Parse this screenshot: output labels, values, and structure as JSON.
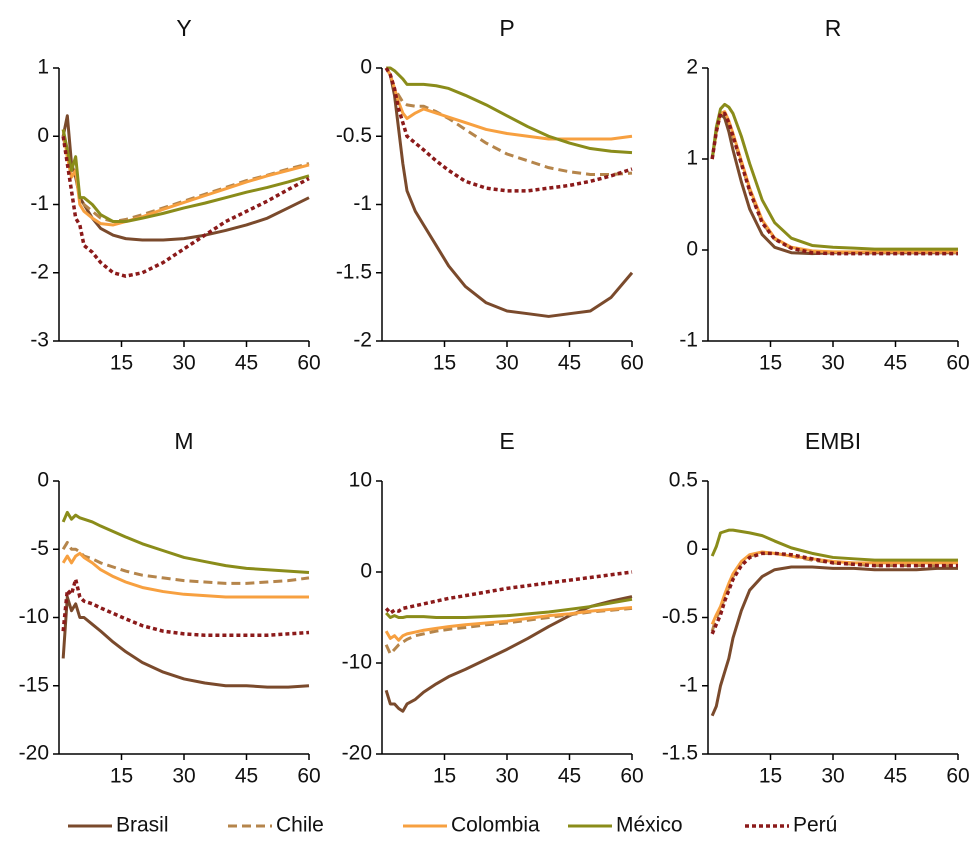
{
  "chart_data": [
    {
      "type": "line",
      "title": "Y",
      "xlim": [
        0,
        60
      ],
      "xticks": [
        15,
        30,
        45,
        60
      ],
      "ylim": [
        -3,
        1
      ],
      "yticks": [
        -3,
        -2,
        -1,
        0,
        1
      ],
      "x": [
        1,
        2,
        3,
        4,
        5,
        6,
        8,
        10,
        13,
        16,
        20,
        25,
        30,
        35,
        40,
        45,
        50,
        55,
        60
      ],
      "series": [
        {
          "name": "Brasil",
          "color": "#7a4a2c",
          "style": "solid",
          "values": [
            0,
            0.3,
            -0.4,
            -0.6,
            -0.9,
            -1.0,
            -1.2,
            -1.35,
            -1.45,
            -1.5,
            -1.52,
            -1.52,
            -1.5,
            -1.45,
            -1.38,
            -1.3,
            -1.2,
            -1.05,
            -0.9
          ]
        },
        {
          "name": "Chile",
          "color": "#b5854b",
          "style": "dashed",
          "values": [
            0,
            -0.3,
            -0.6,
            -0.5,
            -0.9,
            -1.0,
            -1.1,
            -1.2,
            -1.25,
            -1.22,
            -1.15,
            -1.05,
            -0.95,
            -0.85,
            -0.75,
            -0.65,
            -0.57,
            -0.48,
            -0.4
          ]
        },
        {
          "name": "Colombia",
          "color": "#f7a040",
          "style": "solid",
          "values": [
            0.1,
            -0.3,
            -0.6,
            -0.5,
            -1.0,
            -1.1,
            -1.2,
            -1.28,
            -1.3,
            -1.25,
            -1.18,
            -1.07,
            -0.97,
            -0.87,
            -0.77,
            -0.67,
            -0.58,
            -0.5,
            -0.42
          ]
        },
        {
          "name": "México",
          "color": "#8a8c1a",
          "style": "solid",
          "values": [
            0.1,
            -0.2,
            -0.5,
            -0.3,
            -0.9,
            -0.9,
            -1.0,
            -1.15,
            -1.25,
            -1.25,
            -1.2,
            -1.13,
            -1.05,
            -0.98,
            -0.9,
            -0.82,
            -0.75,
            -0.67,
            -0.58
          ]
        },
        {
          "name": "Perú",
          "color": "#8b1a1a",
          "style": "dotted",
          "values": [
            0,
            -0.4,
            -0.8,
            -1.2,
            -1.3,
            -1.6,
            -1.7,
            -1.85,
            -2.0,
            -2.05,
            -2.0,
            -1.85,
            -1.65,
            -1.45,
            -1.25,
            -1.1,
            -0.95,
            -0.78,
            -0.62
          ]
        }
      ]
    },
    {
      "type": "line",
      "title": "P",
      "xlim": [
        0,
        60
      ],
      "xticks": [
        15,
        30,
        45,
        60
      ],
      "ylim": [
        -2,
        0
      ],
      "yticks": [
        -2,
        -1.5,
        -1,
        -0.5,
        0
      ],
      "x": [
        1,
        2,
        3,
        4,
        5,
        6,
        8,
        10,
        13,
        16,
        20,
        25,
        30,
        35,
        40,
        45,
        50,
        55,
        60
      ],
      "series": [
        {
          "name": "Brasil",
          "color": "#7a4a2c",
          "style": "solid",
          "values": [
            0,
            -0.05,
            -0.2,
            -0.45,
            -0.7,
            -0.9,
            -1.05,
            -1.15,
            -1.3,
            -1.45,
            -1.6,
            -1.72,
            -1.78,
            -1.8,
            -1.82,
            -1.8,
            -1.78,
            -1.68,
            -1.5
          ]
        },
        {
          "name": "Chile",
          "color": "#b5854b",
          "style": "dashed",
          "values": [
            0,
            -0.05,
            -0.15,
            -0.2,
            -0.25,
            -0.27,
            -0.28,
            -0.28,
            -0.32,
            -0.37,
            -0.45,
            -0.55,
            -0.63,
            -0.68,
            -0.73,
            -0.76,
            -0.78,
            -0.78,
            -0.77
          ]
        },
        {
          "name": "Colombia",
          "color": "#f7a040",
          "style": "solid",
          "values": [
            0,
            -0.05,
            -0.15,
            -0.25,
            -0.33,
            -0.37,
            -0.33,
            -0.3,
            -0.33,
            -0.36,
            -0.4,
            -0.45,
            -0.48,
            -0.5,
            -0.52,
            -0.52,
            -0.52,
            -0.52,
            -0.5
          ]
        },
        {
          "name": "México",
          "color": "#8a8c1a",
          "style": "solid",
          "values": [
            0,
            0,
            -0.02,
            -0.05,
            -0.08,
            -0.12,
            -0.12,
            -0.12,
            -0.13,
            -0.15,
            -0.2,
            -0.27,
            -0.35,
            -0.43,
            -0.5,
            -0.55,
            -0.59,
            -0.61,
            -0.62
          ]
        },
        {
          "name": "Perú",
          "color": "#8b1a1a",
          "style": "dotted",
          "values": [
            0,
            -0.05,
            -0.15,
            -0.3,
            -0.4,
            -0.5,
            -0.55,
            -0.6,
            -0.68,
            -0.75,
            -0.83,
            -0.88,
            -0.9,
            -0.9,
            -0.88,
            -0.86,
            -0.83,
            -0.79,
            -0.74
          ]
        }
      ]
    },
    {
      "type": "line",
      "title": "R",
      "xlim": [
        0,
        60
      ],
      "xticks": [
        15,
        30,
        45,
        60
      ],
      "ylim": [
        -1,
        2
      ],
      "yticks": [
        -1,
        0,
        1,
        2
      ],
      "x": [
        1,
        2,
        3,
        4,
        5,
        6,
        8,
        10,
        13,
        16,
        20,
        25,
        30,
        35,
        40,
        45,
        50,
        55,
        60
      ],
      "series": [
        {
          "name": "Brasil",
          "color": "#7a4a2c",
          "style": "solid",
          "values": [
            1.0,
            1.3,
            1.5,
            1.45,
            1.3,
            1.1,
            0.75,
            0.45,
            0.17,
            0.03,
            -0.03,
            -0.04,
            -0.03,
            -0.03,
            -0.03,
            -0.03,
            -0.03,
            -0.03,
            -0.03
          ]
        },
        {
          "name": "Chile",
          "color": "#b5854b",
          "style": "dashed",
          "values": [
            1.0,
            1.3,
            1.5,
            1.5,
            1.4,
            1.25,
            0.95,
            0.65,
            0.3,
            0.12,
            0.02,
            -0.02,
            -0.03,
            -0.03,
            -0.03,
            -0.03,
            -0.03,
            -0.03,
            -0.03
          ]
        },
        {
          "name": "Colombia",
          "color": "#f7a040",
          "style": "solid",
          "values": [
            1.0,
            1.3,
            1.5,
            1.52,
            1.42,
            1.28,
            0.98,
            0.68,
            0.33,
            0.13,
            0.03,
            -0.01,
            -0.02,
            -0.02,
            -0.02,
            -0.02,
            -0.02,
            -0.02,
            -0.02
          ]
        },
        {
          "name": "México",
          "color": "#8a8c1a",
          "style": "solid",
          "values": [
            1.0,
            1.35,
            1.55,
            1.6,
            1.57,
            1.5,
            1.25,
            0.95,
            0.55,
            0.3,
            0.13,
            0.05,
            0.03,
            0.02,
            0.01,
            0.01,
            0.01,
            0.01,
            0.01
          ]
        },
        {
          "name": "Perú",
          "color": "#8b1a1a",
          "style": "dotted",
          "values": [
            1.0,
            1.3,
            1.5,
            1.5,
            1.4,
            1.25,
            0.95,
            0.65,
            0.3,
            0.12,
            0.02,
            -0.03,
            -0.04,
            -0.04,
            -0.04,
            -0.04,
            -0.04,
            -0.04,
            -0.04
          ]
        }
      ]
    },
    {
      "type": "line",
      "title": "M",
      "xlim": [
        0,
        60
      ],
      "xticks": [
        15,
        30,
        45,
        60
      ],
      "ylim": [
        -20,
        0
      ],
      "yticks": [
        -20,
        -15,
        -10,
        -5,
        0
      ],
      "x": [
        1,
        2,
        3,
        4,
        5,
        6,
        8,
        10,
        13,
        16,
        20,
        25,
        30,
        35,
        40,
        45,
        50,
        55,
        60
      ],
      "series": [
        {
          "name": "Brasil",
          "color": "#7a4a2c",
          "style": "solid",
          "values": [
            -13,
            -8.5,
            -9.5,
            -9,
            -10,
            -10,
            -10.5,
            -11,
            -11.8,
            -12.5,
            -13.3,
            -14,
            -14.5,
            -14.8,
            -15,
            -15,
            -15.1,
            -15.1,
            -15
          ]
        },
        {
          "name": "Chile",
          "color": "#b5854b",
          "style": "dashed",
          "values": [
            -5,
            -4.5,
            -5,
            -5,
            -5.2,
            -5.5,
            -5.7,
            -6,
            -6.3,
            -6.6,
            -6.9,
            -7.1,
            -7.3,
            -7.4,
            -7.5,
            -7.5,
            -7.4,
            -7.3,
            -7.1
          ]
        },
        {
          "name": "Colombia",
          "color": "#f7a040",
          "style": "solid",
          "values": [
            -6,
            -5.5,
            -6,
            -5.5,
            -5.3,
            -5.6,
            -6,
            -6.5,
            -7,
            -7.4,
            -7.8,
            -8.1,
            -8.3,
            -8.4,
            -8.5,
            -8.5,
            -8.5,
            -8.5,
            -8.5
          ]
        },
        {
          "name": "México",
          "color": "#8a8c1a",
          "style": "solid",
          "values": [
            -3,
            -2.3,
            -2.8,
            -2.5,
            -2.7,
            -2.8,
            -3,
            -3.3,
            -3.7,
            -4.1,
            -4.6,
            -5.1,
            -5.6,
            -5.9,
            -6.2,
            -6.4,
            -6.5,
            -6.6,
            -6.7
          ]
        },
        {
          "name": "Perú",
          "color": "#8b1a1a",
          "style": "dotted",
          "values": [
            -11,
            -8,
            -8.3,
            -7.2,
            -8.5,
            -8.8,
            -9,
            -9.3,
            -9.7,
            -10.1,
            -10.6,
            -11,
            -11.2,
            -11.3,
            -11.3,
            -11.3,
            -11.3,
            -11.2,
            -11.1
          ]
        }
      ]
    },
    {
      "type": "line",
      "title": "E",
      "xlim": [
        0,
        60
      ],
      "xticks": [
        15,
        30,
        45,
        60
      ],
      "ylim": [
        -20,
        10
      ],
      "yticks": [
        -20,
        -10,
        0,
        10
      ],
      "x": [
        1,
        2,
        3,
        4,
        5,
        6,
        8,
        10,
        13,
        16,
        20,
        25,
        30,
        35,
        40,
        45,
        50,
        55,
        60
      ],
      "series": [
        {
          "name": "Brasil",
          "color": "#7a4a2c",
          "style": "solid",
          "values": [
            -13,
            -14.5,
            -14.5,
            -15,
            -15.3,
            -14.5,
            -14,
            -13.2,
            -12.3,
            -11.5,
            -10.7,
            -9.6,
            -8.5,
            -7.3,
            -6,
            -4.8,
            -3.8,
            -3.2,
            -2.7
          ]
        },
        {
          "name": "Chile",
          "color": "#b5854b",
          "style": "dashed",
          "values": [
            -8,
            -9,
            -8.5,
            -8,
            -7.7,
            -7.4,
            -7,
            -6.8,
            -6.5,
            -6.3,
            -6.1,
            -5.8,
            -5.6,
            -5.3,
            -5,
            -4.7,
            -4.4,
            -4.2,
            -4
          ]
        },
        {
          "name": "Colombia",
          "color": "#f7a040",
          "style": "solid",
          "values": [
            -6.5,
            -7.3,
            -7,
            -7.5,
            -7,
            -6.8,
            -6.6,
            -6.4,
            -6.2,
            -6,
            -5.8,
            -5.6,
            -5.4,
            -5.1,
            -4.8,
            -4.6,
            -4.3,
            -4.1,
            -3.9
          ]
        },
        {
          "name": "México",
          "color": "#8a8c1a",
          "style": "solid",
          "values": [
            -4.5,
            -5,
            -4.8,
            -5,
            -5,
            -4.9,
            -4.9,
            -4.9,
            -5,
            -5,
            -5,
            -4.9,
            -4.8,
            -4.6,
            -4.4,
            -4.1,
            -3.8,
            -3.4,
            -3
          ]
        },
        {
          "name": "Perú",
          "color": "#8b1a1a",
          "style": "dotted",
          "values": [
            -4,
            -4.5,
            -4.2,
            -4.3,
            -4,
            -3.9,
            -3.7,
            -3.5,
            -3.2,
            -2.9,
            -2.6,
            -2.2,
            -1.8,
            -1.5,
            -1.2,
            -0.9,
            -0.6,
            -0.3,
            0
          ]
        }
      ]
    },
    {
      "type": "line",
      "title": "EMBI",
      "xlim": [
        0,
        60
      ],
      "xticks": [
        15,
        30,
        45,
        60
      ],
      "ylim": [
        -1.5,
        0.5
      ],
      "yticks": [
        -1.5,
        -1,
        -0.5,
        0,
        0.5
      ],
      "x": [
        1,
        2,
        3,
        4,
        5,
        6,
        8,
        10,
        13,
        16,
        20,
        25,
        30,
        35,
        40,
        45,
        50,
        55,
        60
      ],
      "series": [
        {
          "name": "Brasil",
          "color": "#7a4a2c",
          "style": "solid",
          "values": [
            -1.22,
            -1.15,
            -1.0,
            -0.9,
            -0.8,
            -0.65,
            -0.45,
            -0.3,
            -0.2,
            -0.15,
            -0.13,
            -0.13,
            -0.14,
            -0.14,
            -0.15,
            -0.15,
            -0.15,
            -0.14,
            -0.14
          ]
        },
        {
          "name": "Chile",
          "color": "#b5854b",
          "style": "dashed",
          "values": [
            -0.6,
            -0.5,
            -0.45,
            -0.35,
            -0.28,
            -0.2,
            -0.1,
            -0.05,
            -0.03,
            -0.03,
            -0.05,
            -0.08,
            -0.1,
            -0.11,
            -0.12,
            -0.12,
            -0.12,
            -0.12,
            -0.12
          ]
        },
        {
          "name": "Colombia",
          "color": "#f7a040",
          "style": "solid",
          "values": [
            -0.55,
            -0.48,
            -0.42,
            -0.33,
            -0.25,
            -0.18,
            -0.09,
            -0.04,
            -0.02,
            -0.03,
            -0.05,
            -0.07,
            -0.09,
            -0.1,
            -0.1,
            -0.1,
            -0.1,
            -0.1,
            -0.1
          ]
        },
        {
          "name": "México",
          "color": "#8a8c1a",
          "style": "solid",
          "values": [
            -0.05,
            0.02,
            0.12,
            0.13,
            0.14,
            0.14,
            0.13,
            0.12,
            0.1,
            0.06,
            0.01,
            -0.03,
            -0.06,
            -0.07,
            -0.08,
            -0.08,
            -0.08,
            -0.08,
            -0.08
          ]
        },
        {
          "name": "Perú",
          "color": "#8b1a1a",
          "style": "dotted",
          "values": [
            -0.62,
            -0.55,
            -0.48,
            -0.38,
            -0.3,
            -0.22,
            -0.12,
            -0.06,
            -0.03,
            -0.03,
            -0.04,
            -0.07,
            -0.1,
            -0.11,
            -0.12,
            -0.12,
            -0.12,
            -0.12,
            -0.12
          ]
        }
      ]
    }
  ]
}
